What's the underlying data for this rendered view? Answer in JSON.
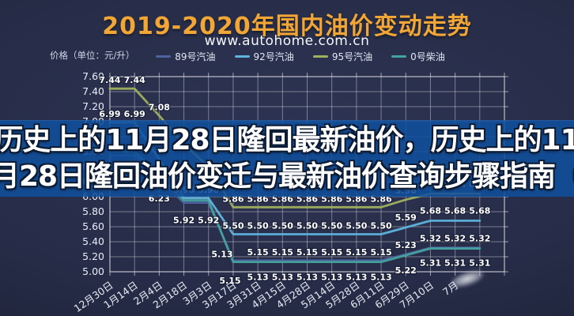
{
  "overlay": {
    "line1": "历史上的11月28日隆回最新油价，历史上的11",
    "line2": "月28日隆回油价变迁与最新油价查询步骤指南（"
  },
  "chart_data": {
    "type": "line",
    "title": "2019-2020年国内油价变动走势",
    "subtitle": "www.autohome.com.cn",
    "unit_label": "价格（单位：元/升）",
    "legend_position": "top",
    "grid": true,
    "ylim": [
      5.0,
      7.6
    ],
    "y_ticks": [
      "7.60",
      "7.40",
      "7.20",
      "7.00",
      "6.80",
      "6.60",
      "6.40",
      "6.20",
      "6.00",
      "5.80",
      "5.60",
      "5.40",
      "5.20",
      "5.00"
    ],
    "categories": [
      "12月30日",
      "1月14日",
      "2月4日",
      "2月18日",
      "3月3日",
      "3月17日",
      "3月31日",
      "4月15日",
      "4月28日",
      "5月14日",
      "5月28日",
      "6月11日",
      "6月29日",
      "7月10日",
      "7月",
      ""
    ],
    "series": [
      {
        "name": "89号汽油",
        "color": "#4d63a0",
        "values": [
          6.55,
          6.55,
          6.23,
          5.92,
          5.92,
          5.15,
          5.15,
          5.15,
          5.15,
          5.15,
          5.15,
          5.15,
          5.23,
          5.32,
          5.32,
          5.32
        ],
        "labels": [
          {
            "i": 2,
            "t": "6.23",
            "dy": 20
          },
          {
            "i": 3,
            "t": "5.92",
            "dy": 18
          },
          {
            "i": 4,
            "t": "5.92",
            "dy": 18
          },
          {
            "i": 5,
            "t": "5.15",
            "dy": 21,
            "dx": -4
          },
          {
            "i": 6,
            "t": "5.15",
            "dy": -7
          },
          {
            "i": 7,
            "t": "5.15",
            "dy": -7
          },
          {
            "i": 8,
            "t": "5.15",
            "dy": -7
          },
          {
            "i": 9,
            "t": "5.15",
            "dy": -7
          },
          {
            "i": 10,
            "t": "5.15",
            "dy": -7
          },
          {
            "i": 11,
            "t": "5.15",
            "dy": -7
          },
          {
            "i": 12,
            "t": "5.23",
            "dy": -8
          },
          {
            "i": 13,
            "t": "5.32",
            "dy": -8
          },
          {
            "i": 14,
            "t": "5.32",
            "dy": -8
          },
          {
            "i": 15,
            "t": "5.32",
            "dy": -8
          }
        ]
      },
      {
        "name": "0号柴油",
        "color": "#43a39e",
        "values": [
          6.6,
          6.6,
          6.28,
          5.95,
          5.95,
          5.13,
          5.13,
          5.13,
          5.13,
          5.13,
          5.13,
          5.13,
          5.22,
          5.31,
          5.31,
          5.31
        ],
        "labels": [
          {
            "i": 5,
            "t": "5.13",
            "dy": -6,
            "dx": -14
          },
          {
            "i": 6,
            "t": "5.13",
            "dy": 15
          },
          {
            "i": 7,
            "t": "5.13",
            "dy": 15
          },
          {
            "i": 8,
            "t": "5.13",
            "dy": 15
          },
          {
            "i": 9,
            "t": "5.13",
            "dy": 15
          },
          {
            "i": 10,
            "t": "5.13",
            "dy": 15
          },
          {
            "i": 11,
            "t": "5.13",
            "dy": 15
          },
          {
            "i": 12,
            "t": "5.22",
            "dy": 15
          },
          {
            "i": 13,
            "t": "5.31",
            "dy": 14
          },
          {
            "i": 14,
            "t": "5.31",
            "dy": 14
          },
          {
            "i": 15,
            "t": "5.31",
            "dy": 14
          }
        ]
      },
      {
        "name": "92号汽油",
        "color": "#5fb4dc",
        "values": [
          6.99,
          6.99,
          6.5,
          5.98,
          5.98,
          5.5,
          5.5,
          5.5,
          5.5,
          5.5,
          5.5,
          5.5,
          5.59,
          5.68,
          5.68,
          5.68
        ],
        "labels": [
          {
            "i": 0,
            "t": "6.99",
            "dy": -7
          },
          {
            "i": 1,
            "t": "6.99",
            "dy": -7
          },
          {
            "i": 3,
            "t": "5.98",
            "dy": -7
          },
          {
            "i": 4,
            "t": "5.98",
            "dy": -7
          },
          {
            "i": 5,
            "t": "5.50",
            "dy": -7
          },
          {
            "i": 6,
            "t": "5.50",
            "dy": -7
          },
          {
            "i": 7,
            "t": "5.50",
            "dy": -7
          },
          {
            "i": 8,
            "t": "5.50",
            "dy": -7
          },
          {
            "i": 9,
            "t": "5.50",
            "dy": -7
          },
          {
            "i": 10,
            "t": "5.50",
            "dy": -7
          },
          {
            "i": 11,
            "t": "5.50",
            "dy": -7
          },
          {
            "i": 12,
            "t": "5.59",
            "dy": -9
          },
          {
            "i": 13,
            "t": "5.68",
            "dy": -9
          },
          {
            "i": 14,
            "t": "5.68",
            "dy": -9
          },
          {
            "i": 15,
            "t": "5.68",
            "dy": -9
          }
        ]
      },
      {
        "name": "95号汽油",
        "color": "#a0b05e",
        "values": [
          7.44,
          7.44,
          7.08,
          6.7,
          6.4,
          5.86,
          5.86,
          5.86,
          5.86,
          5.86,
          5.86,
          5.86,
          5.96,
          6.04,
          6.04,
          6.04
        ],
        "labels": [
          {
            "i": 0,
            "t": "7.44",
            "dy": -7
          },
          {
            "i": 1,
            "t": "7.44",
            "dy": -7
          },
          {
            "i": 2,
            "t": "7.08",
            "dy": -7
          },
          {
            "i": 5,
            "t": "5.86",
            "dy": -7
          },
          {
            "i": 6,
            "t": "5.86",
            "dy": -7
          },
          {
            "i": 7,
            "t": "5.86",
            "dy": -7
          },
          {
            "i": 8,
            "t": "5.86",
            "dy": -7
          },
          {
            "i": 9,
            "t": "5.86",
            "dy": -7
          },
          {
            "i": 10,
            "t": "5.86",
            "dy": -7
          },
          {
            "i": 11,
            "t": "5.86",
            "dy": -7
          },
          {
            "i": 12,
            "t": "5.96",
            "dy": -8
          },
          {
            "i": 13,
            "t": "6.04",
            "dy": -8
          },
          {
            "i": 14,
            "t": "6.04",
            "dy": -8
          },
          {
            "i": 15,
            "t": "6.04",
            "dy": -8
          }
        ]
      }
    ]
  }
}
